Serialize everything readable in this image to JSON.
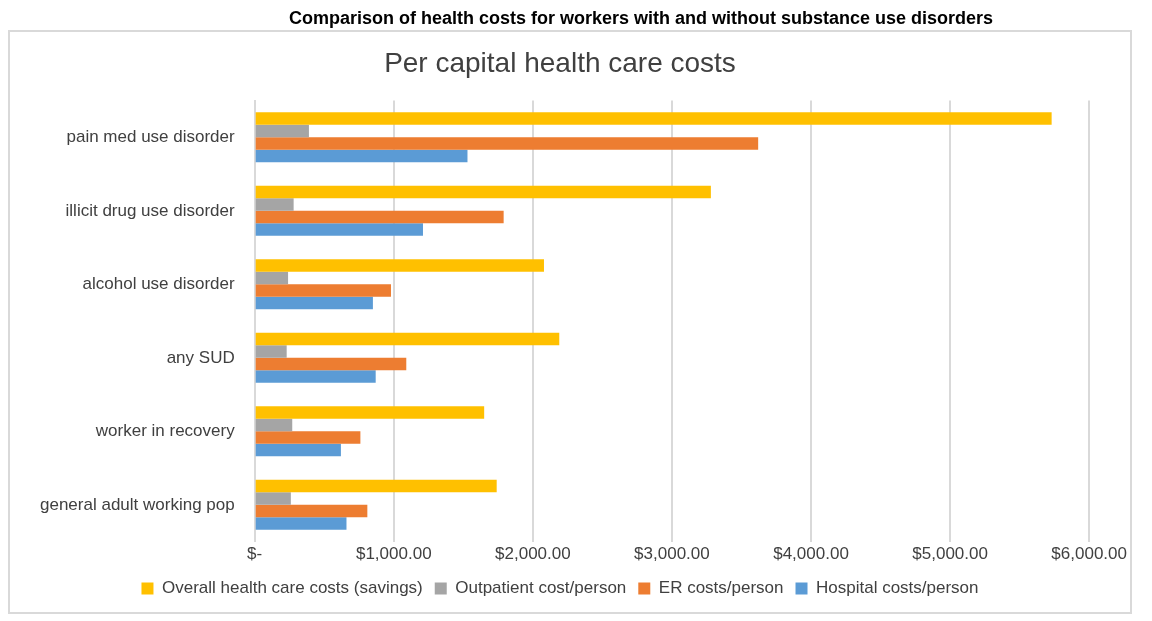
{
  "chart_data": {
    "type": "bar",
    "orientation": "horizontal",
    "title": "Comparison of health costs for workers with and without substance use disorders",
    "subtitle": "Per capital health care costs",
    "categories": [
      "pain med use disorder",
      "illicit drug use disorder",
      "alcohol use disorder",
      "any SUD",
      "worker in recovery",
      "general adult working pop"
    ],
    "series": [
      {
        "name": "Overall health care costs (savings)",
        "color": "#ffc000",
        "values": [
          5730,
          3280,
          2080,
          2190,
          1650,
          1740
        ]
      },
      {
        "name": "Outpatient cost/person",
        "color": "#a5a5a5",
        "values": [
          390,
          280,
          240,
          230,
          270,
          260
        ]
      },
      {
        "name": "ER costs/person",
        "color": "#ed7d31",
        "values": [
          3620,
          1790,
          980,
          1090,
          760,
          810
        ]
      },
      {
        "name": "Hospital costs/person",
        "color": "#5b9bd5",
        "values": [
          1530,
          1210,
          850,
          870,
          620,
          660
        ]
      }
    ],
    "xlim": [
      0,
      6000
    ],
    "xticks": [
      {
        "value": 0,
        "label": "$-"
      },
      {
        "value": 1000,
        "label": "$1,000.00"
      },
      {
        "value": 2000,
        "label": "$2,000.00"
      },
      {
        "value": 3000,
        "label": "$3,000.00"
      },
      {
        "value": 4000,
        "label": "$4,000.00"
      },
      {
        "value": 5000,
        "label": "$5,000.00"
      },
      {
        "value": 6000,
        "label": "$6,000.00"
      }
    ],
    "grid": "x",
    "legend": "bottom"
  }
}
